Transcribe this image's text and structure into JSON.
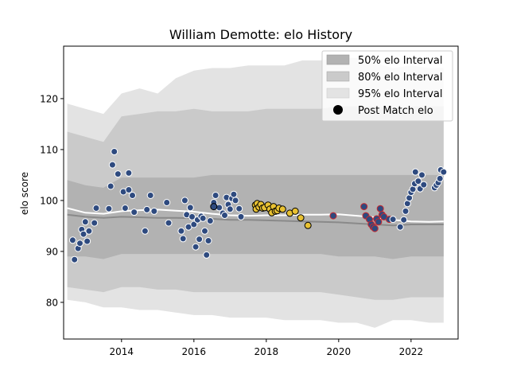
{
  "chart_data": {
    "type": "scatter",
    "title": "William Demotte: elo History",
    "xlabel": "",
    "ylabel": "elo score",
    "xlim": [
      2012.4,
      2023.3
    ],
    "ylim": [
      72.8,
      130.3
    ],
    "x_ticks": [
      2014,
      2016,
      2018,
      2020,
      2022
    ],
    "y_ticks": [
      80,
      90,
      100,
      110,
      120
    ],
    "grid": false,
    "legend_placement": "top-right",
    "legend": [
      {
        "label": "50% elo Interval",
        "kind": "band",
        "color": "#b2b2b2"
      },
      {
        "label": "80% elo Interval",
        "kind": "band",
        "color": "#cacaca"
      },
      {
        "label": "95% elo Interval",
        "kind": "band",
        "color": "#e3e3e3"
      },
      {
        "label": "Post Match elo",
        "kind": "marker",
        "color": "#000000"
      }
    ],
    "colors": {
      "band95": "#e3e3e3",
      "band80": "#cacaca",
      "band50": "#b2b2b2",
      "median_line": "#8a8a8a",
      "mean_line": "#ffffff",
      "point_blue": "#2e4a7f",
      "point_gold": "#e8c132",
      "edge_white": "#ffffff",
      "edge_black": "#000000",
      "edge_red": "#c8282e"
    },
    "bands": {
      "x": [
        2012.5,
        2013.0,
        2013.5,
        2014.0,
        2014.5,
        2015.0,
        2015.5,
        2016.0,
        2016.5,
        2017.0,
        2017.5,
        2018.0,
        2018.5,
        2019.0,
        2019.5,
        2020.0,
        2020.5,
        2021.0,
        2021.5,
        2022.0,
        2022.5,
        2022.9
      ],
      "p95_upper": [
        119.0,
        118.0,
        117.0,
        121.0,
        122.0,
        121.0,
        124.0,
        125.5,
        126.0,
        126.0,
        126.5,
        126.5,
        126.5,
        127.5,
        127.5,
        128.0,
        128.0,
        127.0,
        126.0,
        126.5,
        126.0,
        126.0
      ],
      "p80_upper": [
        113.5,
        112.5,
        111.5,
        116.5,
        117.0,
        117.5,
        117.5,
        118.0,
        117.5,
        117.5,
        117.5,
        118.0,
        118.0,
        118.0,
        118.0,
        118.5,
        118.5,
        118.5,
        118.0,
        118.5,
        118.5,
        118.5
      ],
      "p50_upper": [
        104.0,
        103.0,
        102.5,
        104.5,
        104.5,
        104.5,
        104.5,
        104.5,
        105.0,
        105.0,
        105.0,
        105.0,
        105.0,
        105.0,
        105.0,
        105.0,
        105.0,
        105.0,
        105.0,
        105.0,
        105.0,
        105.0
      ],
      "p50_lower": [
        89.0,
        89.0,
        88.5,
        89.5,
        89.5,
        89.5,
        89.5,
        89.5,
        89.5,
        89.5,
        89.5,
        89.5,
        89.5,
        89.5,
        89.5,
        89.0,
        89.0,
        89.0,
        88.5,
        89.0,
        89.0,
        89.0
      ],
      "p80_lower": [
        83.0,
        82.5,
        82.0,
        83.0,
        83.0,
        82.5,
        82.5,
        82.0,
        82.0,
        82.0,
        82.0,
        82.0,
        82.0,
        82.0,
        82.0,
        81.5,
        81.0,
        80.5,
        80.5,
        81.0,
        81.0,
        81.0
      ],
      "p95_lower": [
        80.5,
        80.0,
        79.0,
        79.0,
        78.5,
        78.5,
        78.0,
        77.5,
        77.5,
        77.0,
        77.0,
        77.0,
        76.5,
        76.5,
        76.5,
        76.0,
        76.0,
        75.0,
        76.5,
        76.5,
        76.0,
        76.0
      ],
      "median": [
        97.2,
        96.8,
        96.6,
        96.8,
        96.7,
        96.6,
        96.6,
        96.5,
        96.4,
        96.2,
        96.2,
        96.1,
        96.0,
        95.9,
        95.8,
        95.7,
        95.5,
        95.3,
        95.1,
        95.3,
        95.3,
        95.3
      ],
      "mean": [
        98.5,
        97.6,
        97.4,
        97.9,
        98.1,
        98.2,
        98.0,
        97.8,
        97.4,
        97.1,
        97.0,
        97.1,
        97.1,
        97.2,
        97.2,
        97.3,
        97.0,
        96.7,
        96.2,
        95.9,
        95.8,
        95.9
      ]
    },
    "series": [
      {
        "color": "#2e4a7f",
        "edge": "#ffffff",
        "points": [
          [
            2012.65,
            92.2
          ],
          [
            2012.7,
            88.4
          ],
          [
            2012.8,
            90.6
          ],
          [
            2012.85,
            91.6
          ],
          [
            2012.9,
            94.3
          ],
          [
            2012.95,
            93.4
          ],
          [
            2013.0,
            95.8
          ],
          [
            2013.05,
            92.0
          ],
          [
            2013.1,
            94.0
          ],
          [
            2013.25,
            95.6
          ],
          [
            2013.3,
            98.5
          ],
          [
            2013.65,
            98.4
          ],
          [
            2013.7,
            102.8
          ],
          [
            2013.75,
            107.0
          ],
          [
            2013.8,
            109.6
          ],
          [
            2013.9,
            105.2
          ],
          [
            2014.05,
            101.7
          ],
          [
            2014.1,
            98.5
          ],
          [
            2014.2,
            102.1
          ],
          [
            2014.2,
            105.4
          ],
          [
            2014.3,
            101.0
          ],
          [
            2014.35,
            97.7
          ],
          [
            2014.65,
            94.0
          ],
          [
            2014.7,
            98.2
          ],
          [
            2014.8,
            101.0
          ],
          [
            2014.9,
            97.9
          ],
          [
            2015.25,
            99.6
          ],
          [
            2015.3,
            95.6
          ],
          [
            2015.65,
            94.0
          ],
          [
            2015.7,
            92.5
          ],
          [
            2015.75,
            100.0
          ],
          [
            2015.8,
            97.2
          ],
          [
            2015.85,
            94.8
          ],
          [
            2015.9,
            98.6
          ],
          [
            2015.95,
            96.8
          ],
          [
            2016.0,
            95.3
          ],
          [
            2016.05,
            90.9
          ],
          [
            2016.1,
            96.2
          ],
          [
            2016.15,
            92.4
          ],
          [
            2016.2,
            96.9
          ],
          [
            2016.25,
            96.5
          ],
          [
            2016.3,
            94.0
          ],
          [
            2016.35,
            89.3
          ],
          [
            2016.4,
            92.1
          ],
          [
            2016.45,
            96.0
          ],
          [
            2016.55,
            99.6
          ],
          [
            2016.6,
            101.0
          ],
          [
            2016.7,
            98.6
          ],
          [
            2016.8,
            97.5
          ],
          [
            2016.85,
            97.1
          ],
          [
            2016.9,
            100.6
          ],
          [
            2016.95,
            99.2
          ],
          [
            2017.0,
            98.3
          ],
          [
            2017.05,
            100.4
          ],
          [
            2017.1,
            101.2
          ],
          [
            2017.15,
            100.0
          ],
          [
            2017.25,
            98.4
          ],
          [
            2017.3,
            96.8
          ]
        ]
      },
      {
        "color": "#2e4a7f",
        "edge": "#000000",
        "points": [
          [
            2016.55,
            98.8
          ]
        ]
      },
      {
        "color": "#e8c132",
        "edge": "#000000",
        "points": [
          [
            2017.7,
            99.1
          ],
          [
            2017.72,
            98.3
          ],
          [
            2017.75,
            99.4
          ],
          [
            2017.8,
            98.7
          ],
          [
            2017.85,
            99.2
          ],
          [
            2017.9,
            98.5
          ],
          [
            2017.95,
            98.6
          ],
          [
            2018.05,
            99.1
          ],
          [
            2018.1,
            98.3
          ],
          [
            2018.15,
            97.6
          ],
          [
            2018.2,
            98.8
          ],
          [
            2018.25,
            97.9
          ],
          [
            2018.3,
            98.0
          ],
          [
            2018.35,
            98.5
          ],
          [
            2018.45,
            98.3
          ],
          [
            2018.65,
            97.5
          ],
          [
            2018.8,
            97.9
          ],
          [
            2018.95,
            96.6
          ],
          [
            2019.15,
            95.1
          ]
        ]
      },
      {
        "color": "#2e4a7f",
        "edge": "#c8282e",
        "points": [
          [
            2019.85,
            97.0
          ],
          [
            2020.7,
            98.8
          ],
          [
            2020.75,
            97.0
          ],
          [
            2020.85,
            96.3
          ],
          [
            2020.9,
            95.3
          ],
          [
            2020.95,
            94.8
          ],
          [
            2021.0,
            94.5
          ],
          [
            2021.05,
            96.4
          ],
          [
            2021.1,
            95.8
          ],
          [
            2021.15,
            98.4
          ],
          [
            2021.2,
            97.2
          ],
          [
            2021.25,
            96.8
          ],
          [
            2021.4,
            96.3
          ]
        ]
      },
      {
        "color": "#2e4a7f",
        "edge": "#ffffff",
        "points": [
          [
            2021.5,
            96.3
          ],
          [
            2021.7,
            94.8
          ],
          [
            2021.8,
            96.2
          ],
          [
            2021.85,
            97.9
          ],
          [
            2021.9,
            99.4
          ],
          [
            2021.95,
            100.5
          ],
          [
            2022.0,
            101.6
          ],
          [
            2022.05,
            102.2
          ],
          [
            2022.1,
            103.3
          ],
          [
            2022.12,
            105.6
          ],
          [
            2022.2,
            103.8
          ],
          [
            2022.25,
            102.3
          ],
          [
            2022.3,
            105.0
          ],
          [
            2022.35,
            103.1
          ],
          [
            2022.65,
            102.5
          ],
          [
            2022.7,
            103.0
          ],
          [
            2022.75,
            103.5
          ],
          [
            2022.8,
            104.3
          ],
          [
            2022.82,
            106.0
          ],
          [
            2022.9,
            105.6
          ]
        ]
      }
    ]
  }
}
